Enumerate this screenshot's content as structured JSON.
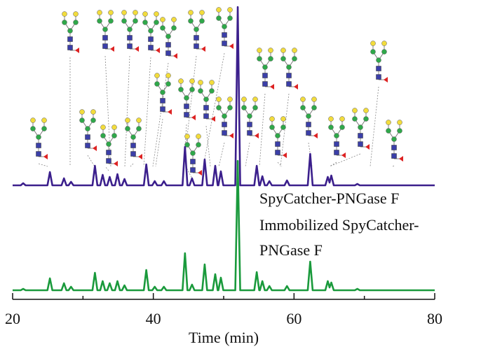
{
  "chart_data": {
    "type": "line",
    "x_label": "Time (min)",
    "xlim": [
      20,
      80
    ],
    "xticks": [
      20,
      40,
      60,
      80
    ],
    "xminorticks": [
      30,
      50,
      70
    ],
    "ylim": [
      0,
      255
    ],
    "x": [
      20,
      21.15,
      21.5,
      21.85,
      24.95,
      25.3,
      25.65,
      26.95,
      27.3,
      27.65,
      27.95,
      28.3,
      28.65,
      31.35,
      31.7,
      32.05,
      32.45,
      32.8,
      33.15,
      33.45,
      33.8,
      34.15,
      34.55,
      34.9,
      35.25,
      35.55,
      35.9,
      36.25,
      38.65,
      39.0,
      39.35,
      39.85,
      40.2,
      40.55,
      41.15,
      41.5,
      41.85,
      44.15,
      44.5,
      44.85,
      45.15,
      45.5,
      45.85,
      46.95,
      47.3,
      47.65,
      48.45,
      48.8,
      49.15,
      49.25,
      49.6,
      49.95,
      51.65,
      52.0,
      52.35,
      54.35,
      54.7,
      55.05,
      55.15,
      55.5,
      55.85,
      56.15,
      56.5,
      56.85,
      58.65,
      59.0,
      59.35,
      61.95,
      62.3,
      62.65,
      64.45,
      64.8,
      65.05,
      65.3,
      65.65,
      68.65,
      69.0,
      69.35,
      80
    ],
    "series": [
      {
        "name": "SpyCatcher-PNGase F",
        "color": "#3b1f8c",
        "values": [
          0,
          0,
          3,
          0,
          0,
          19,
          0,
          0,
          10,
          0,
          0,
          5,
          0,
          0,
          28,
          0,
          0,
          15,
          0,
          0,
          12,
          0,
          0,
          16,
          0,
          0,
          9,
          0,
          0,
          30,
          0,
          0,
          6,
          0,
          0,
          6,
          0,
          0,
          55,
          0,
          0,
          10,
          0,
          0,
          37,
          0,
          0,
          28,
          0,
          0,
          20,
          0,
          0,
          255,
          0,
          0,
          28,
          0,
          0,
          13,
          0,
          0,
          6,
          0,
          0,
          7,
          0,
          0,
          45,
          0,
          0,
          12,
          4,
          14,
          0,
          0,
          2,
          0,
          0
        ]
      },
      {
        "name": "Immobilized SpyCatcher-PNGase F",
        "color": "#1a9a3c",
        "values": [
          0,
          0,
          2,
          0,
          0,
          17,
          0,
          0,
          10,
          0,
          0,
          5,
          0,
          0,
          25,
          0,
          0,
          13,
          0,
          0,
          10,
          0,
          0,
          13,
          0,
          0,
          7,
          0,
          0,
          29,
          0,
          0,
          5,
          0,
          0,
          5,
          0,
          0,
          53,
          0,
          0,
          8,
          0,
          0,
          37,
          0,
          0,
          23,
          0,
          0,
          18,
          0,
          0,
          185,
          0,
          0,
          26,
          0,
          0,
          13,
          0,
          0,
          6,
          0,
          0,
          6,
          0,
          0,
          41,
          0,
          0,
          13,
          4,
          11,
          0,
          0,
          2,
          0,
          0
        ]
      }
    ]
  }
}
